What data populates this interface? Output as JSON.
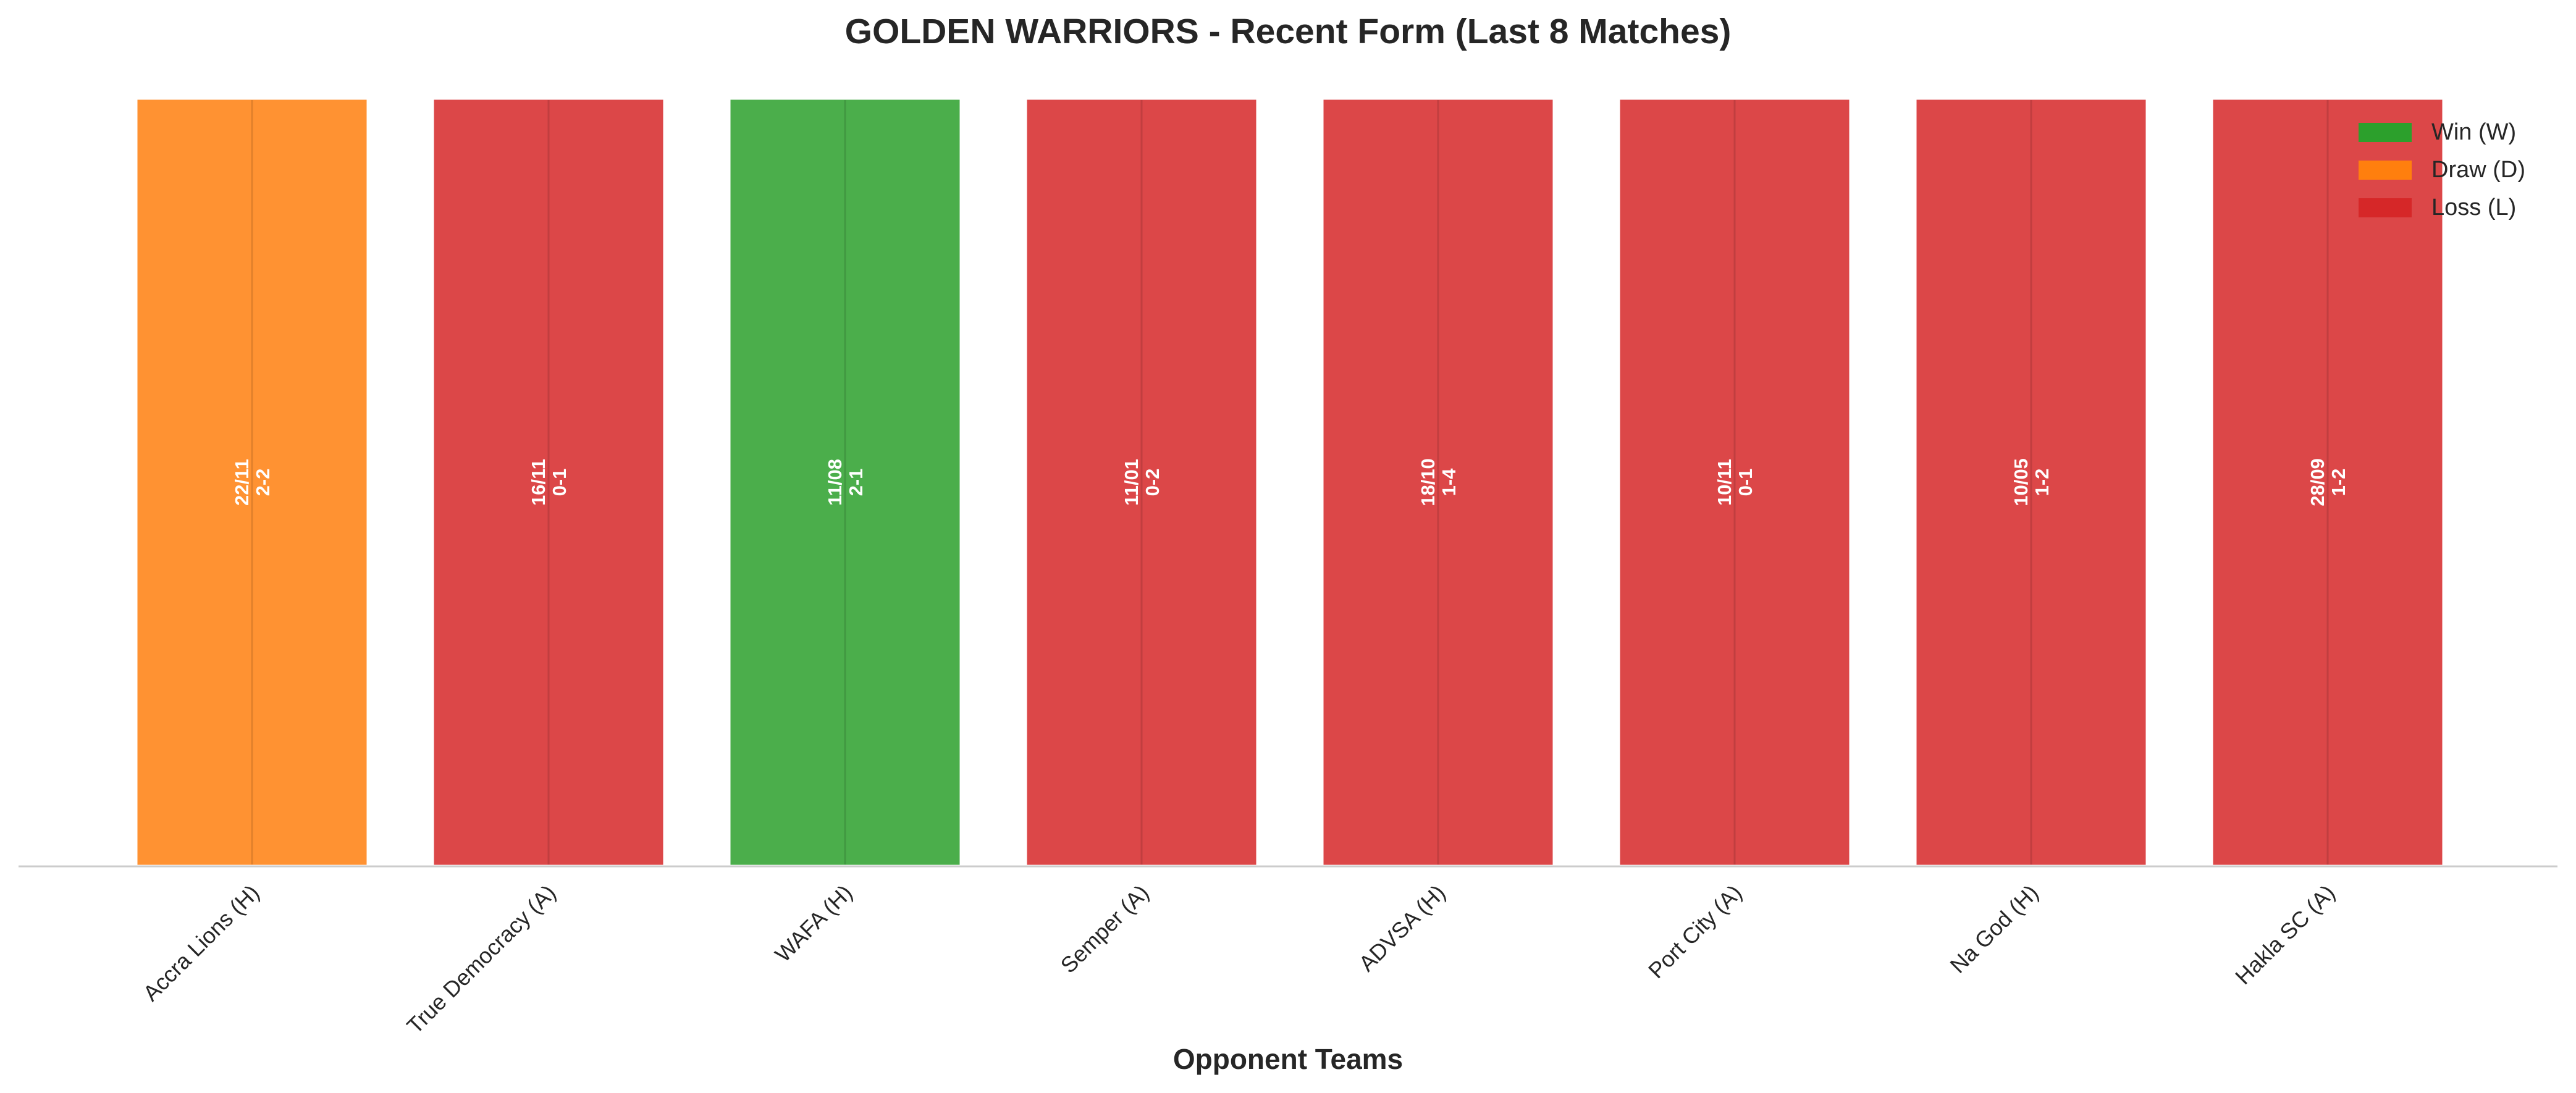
{
  "chart_data": {
    "type": "bar",
    "title": "GOLDEN WARRIORS - Recent Form (Last 8 Matches)",
    "xlabel": "Opponent Teams",
    "ylabel": "",
    "categories": [
      "Accra Lions (H)",
      "True Democracy (A)",
      "WAFA (H)",
      "Semper (A)",
      "ADVSA (H)",
      "Port City (A)",
      "Na God (H)",
      "Hakla SC (A)"
    ],
    "results": [
      "D",
      "L",
      "W",
      "L",
      "L",
      "L",
      "L",
      "L"
    ],
    "values": [
      1,
      1,
      1,
      1,
      1,
      1,
      1,
      1
    ],
    "dates": [
      "22/11",
      "16/11",
      "11/08",
      "11/01",
      "18/10",
      "10/11",
      "10/05",
      "28/09"
    ],
    "scores": [
      "2-2",
      "0-1",
      "2-1",
      "0-2",
      "1-4",
      "0-1",
      "1-2",
      "1-2"
    ],
    "legend": [
      {
        "key": "W",
        "label": "Win (W)",
        "color": "#2ca02c"
      },
      {
        "key": "D",
        "label": "Draw (D)",
        "color": "#ff7f0e"
      },
      {
        "key": "L",
        "label": "Loss (L)",
        "color": "#d62728"
      }
    ],
    "legend_position": "top-right",
    "grid": false
  }
}
